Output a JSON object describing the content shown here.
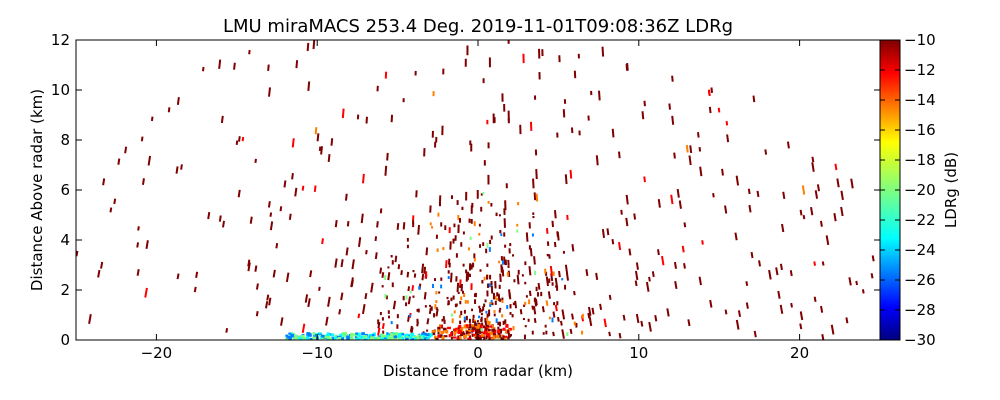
{
  "chart_data": {
    "type": "heatmap",
    "title": "LMU miraMACS 253.4 Deg. 2019-11-01T09:08:36Z  LDRg",
    "xlabel": "Distance from radar (km)",
    "ylabel": "Distance Above radar  (km)",
    "xlim": [
      -25,
      25
    ],
    "ylim": [
      0,
      12
    ],
    "x_ticks": [
      -20,
      -10,
      0,
      10,
      20
    ],
    "y_ticks": [
      0,
      2,
      4,
      6,
      8,
      10,
      12
    ],
    "colorbar": {
      "label": "LDRg (dB)",
      "range": [
        -30,
        -10
      ],
      "ticks": [
        -10,
        -12,
        -14,
        -16,
        -18,
        -20,
        -22,
        -24,
        -26,
        -28,
        -30
      ],
      "colormap": "jet",
      "colors": [
        "#00007f",
        "#0000ff",
        "#007fff",
        "#00ffff",
        "#7fff7f",
        "#ffff00",
        "#ff7f00",
        "#ff0000",
        "#7f0000"
      ]
    },
    "scan_pattern": "RHI range-height scan at 253.4 deg azimuth; sparse returns along range gates, dense near radar",
    "dominant_value_dB": -10,
    "near_surface_band": {
      "x_range_km": [
        -12,
        2
      ],
      "y_max_km": 0.4,
      "values_dB": [
        -24,
        -22,
        -20,
        -14,
        -12,
        -10
      ]
    }
  }
}
